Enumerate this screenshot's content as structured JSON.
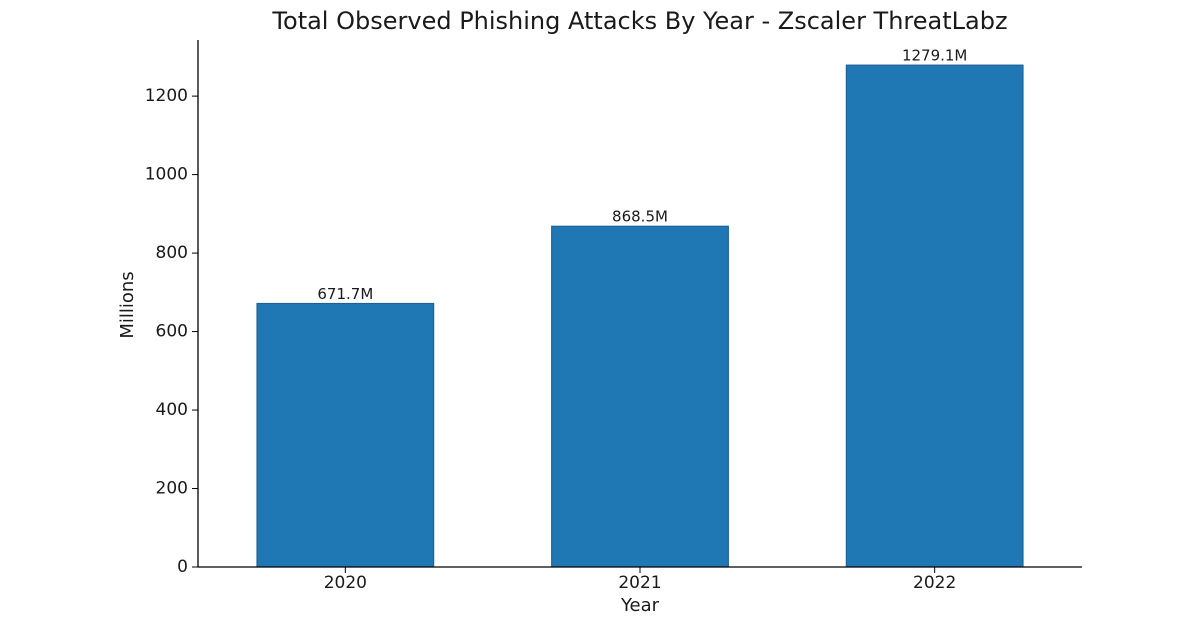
{
  "chart_data": {
    "type": "bar",
    "title": "Total Observed Phishing Attacks By Year - Zscaler ThreatLabz",
    "x_label": "Year",
    "y_label": "Millions",
    "categories": [
      "2020",
      "2021",
      "2022"
    ],
    "values": [
      671.7,
      868.5,
      1279.1
    ],
    "value_labels": [
      "671.7M",
      "868.5M",
      "1279.1M"
    ],
    "color": "#1f77b4",
    "ylim": [
      0,
      1343
    ],
    "yticks": [
      0,
      200,
      400,
      600,
      800,
      1000,
      1200
    ],
    "grid": false
  }
}
